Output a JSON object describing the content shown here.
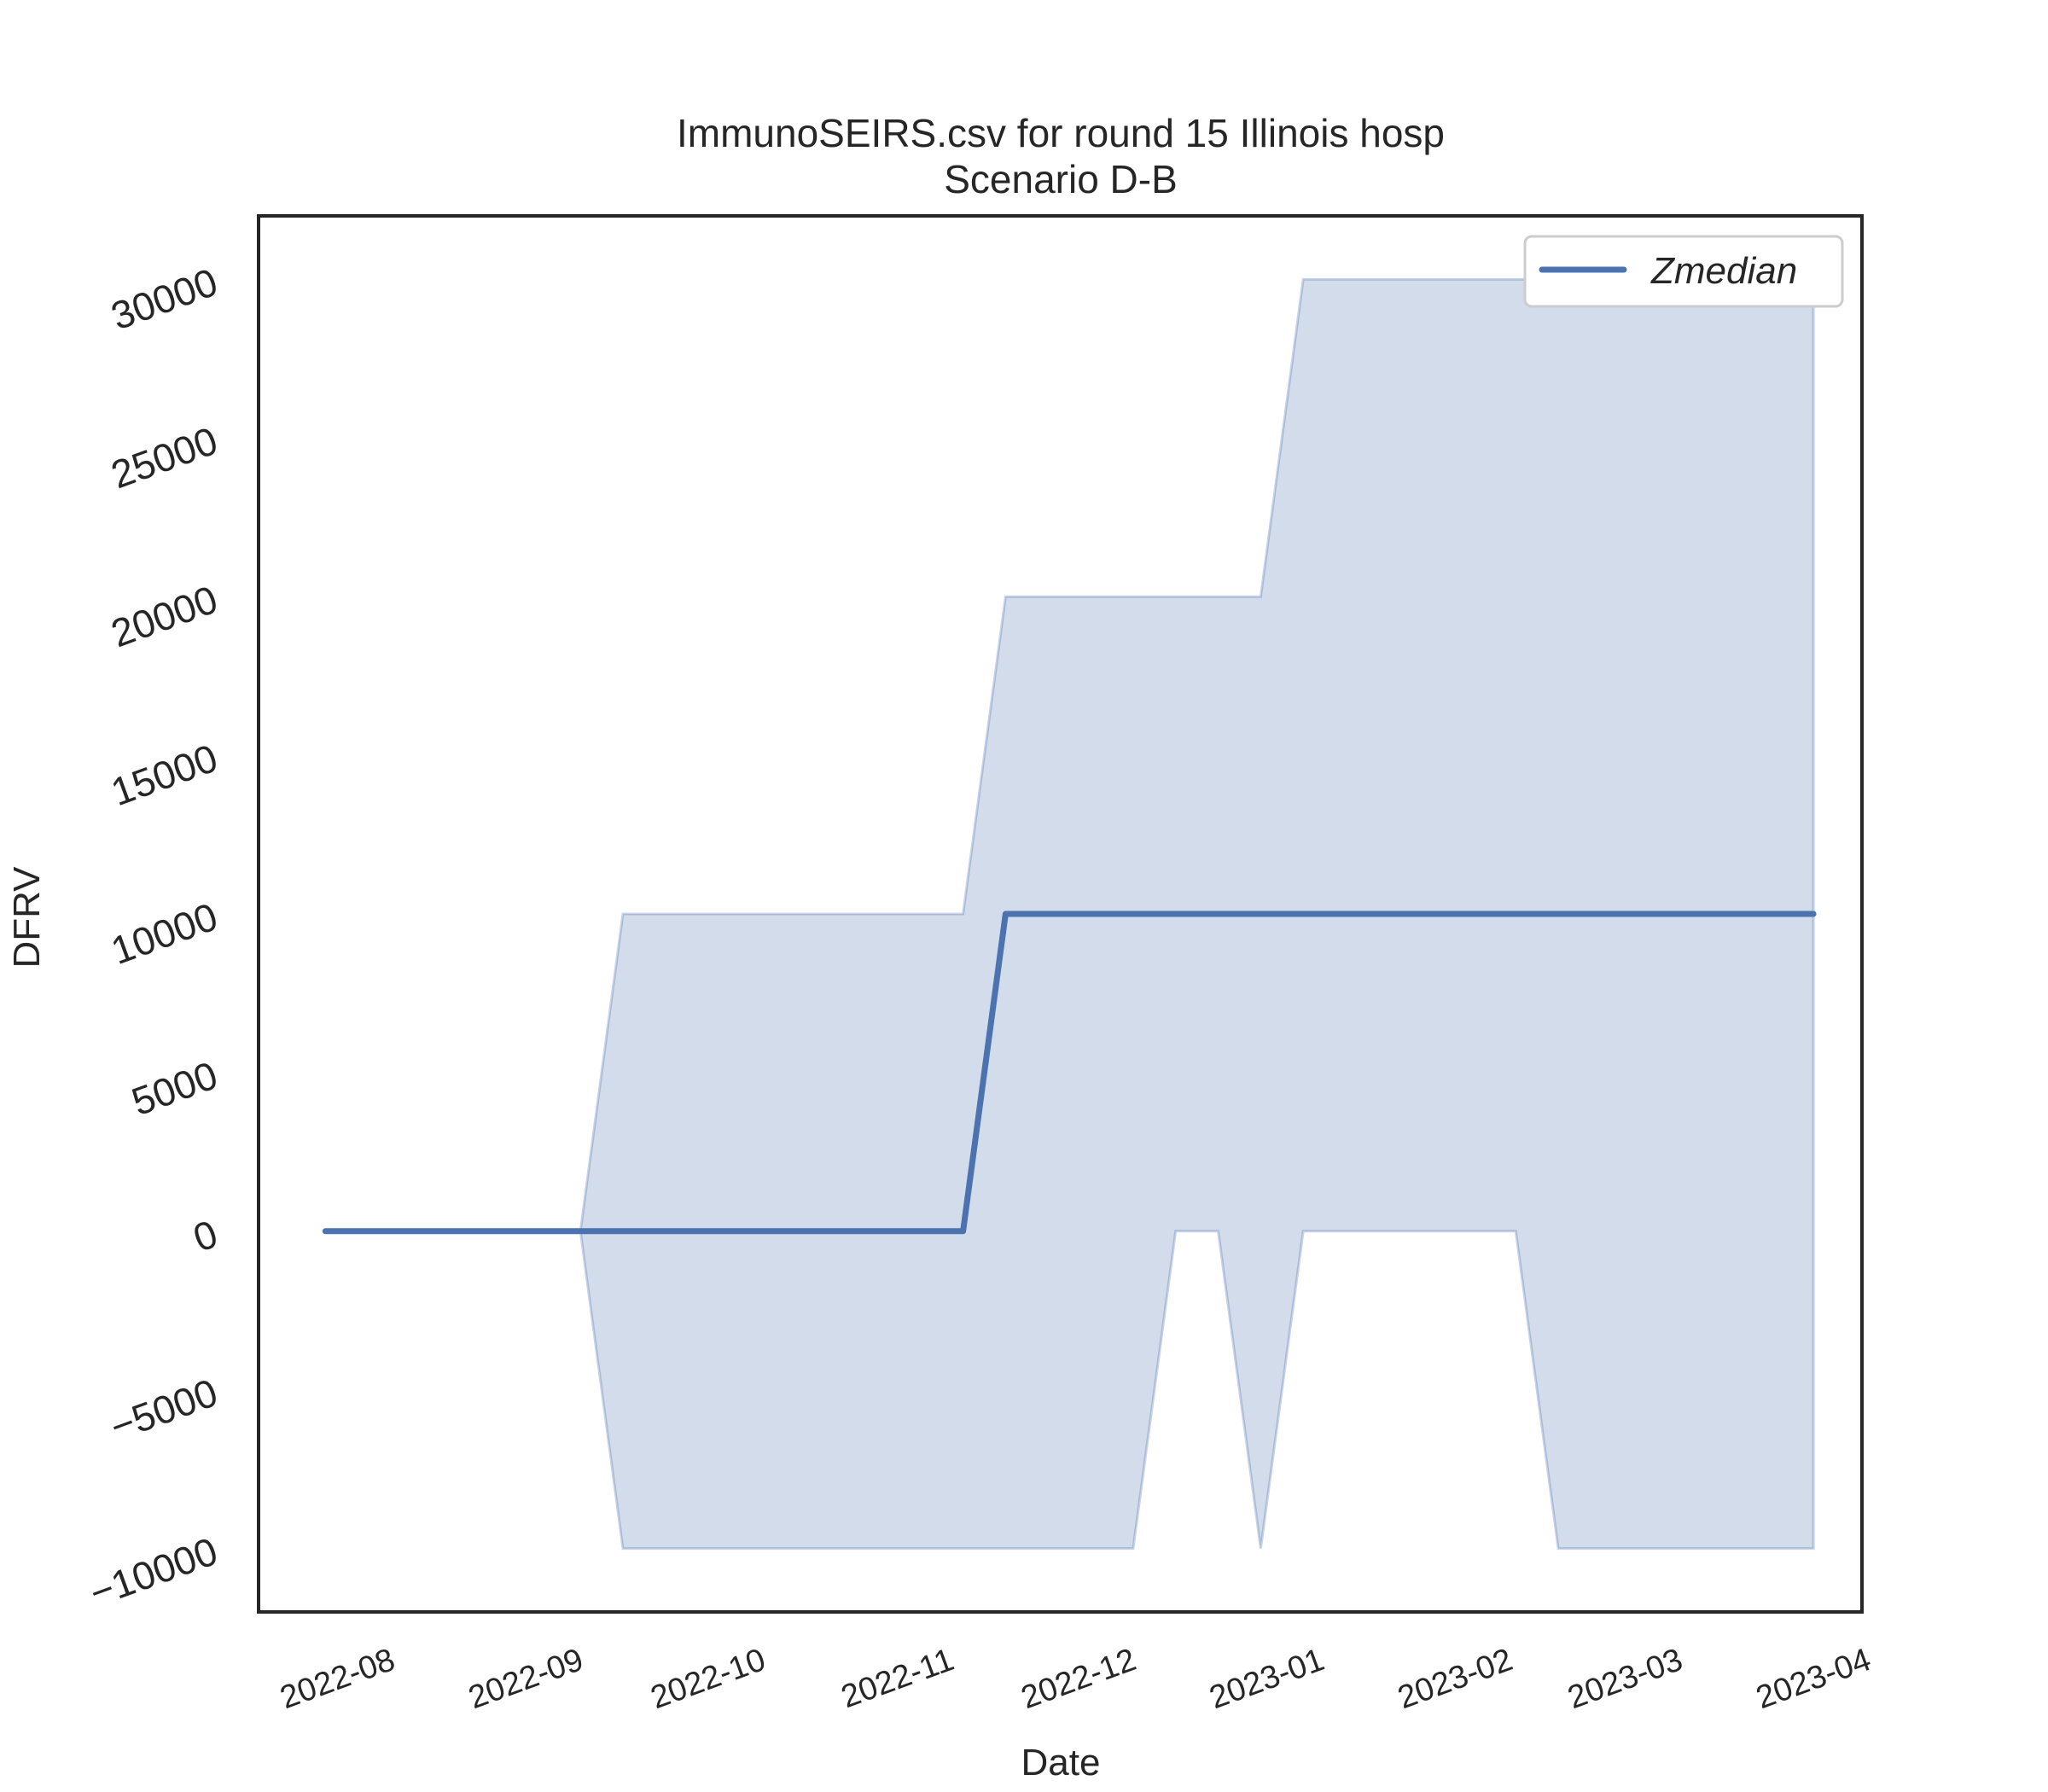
{
  "chart_data": {
    "type": "line",
    "title": "ImmunoSEIRS.csv for round 15 Illinois hosp",
    "subtitle": "Scenario D-B",
    "xlabel": "Date",
    "ylabel": "DFRV",
    "x_tick_labels": [
      "2022-08",
      "2022-09",
      "2022-10",
      "2022-11",
      "2022-12",
      "2023-01",
      "2023-02",
      "2023-03",
      "2023-04"
    ],
    "y_tick_labels": [
      "−10000",
      "−5000",
      "0",
      "5000",
      "10000",
      "15000",
      "20000",
      "25000",
      "30000"
    ],
    "y_ticks": [
      -10000,
      -5000,
      0,
      5000,
      10000,
      15000,
      20000,
      25000,
      30000
    ],
    "xlim": [
      "2022-07-12",
      "2023-04-02"
    ],
    "ylim": [
      -12000,
      32000
    ],
    "grid": false,
    "legend": {
      "position": "top-right",
      "entries": [
        "Zmedian"
      ]
    },
    "colors": {
      "line": "#4c72b0",
      "band": "#4c72b0"
    },
    "x": [
      "2022-07-23",
      "2022-08-06",
      "2022-08-20",
      "2022-09-03",
      "2022-09-10",
      "2022-09-17",
      "2022-10-01",
      "2022-10-15",
      "2022-10-29",
      "2022-11-05",
      "2022-11-12",
      "2022-11-26",
      "2022-12-03",
      "2022-12-10",
      "2022-12-17",
      "2022-12-24",
      "2022-12-31",
      "2023-01-14",
      "2023-01-28",
      "2023-02-04",
      "2023-02-11",
      "2023-02-25",
      "2023-03-11",
      "2023-03-25"
    ],
    "series": [
      {
        "name": "Zmedian",
        "values": [
          0,
          0,
          0,
          0,
          0,
          0,
          0,
          0,
          0,
          0,
          10000,
          10000,
          10000,
          10000,
          10000,
          10000,
          10000,
          10000,
          10000,
          10000,
          10000,
          10000,
          10000,
          10000
        ]
      }
    ],
    "band": {
      "lower": [
        0,
        0,
        0,
        0,
        -10000,
        -10000,
        -10000,
        -10000,
        -10000,
        -10000,
        -10000,
        -10000,
        -10000,
        0,
        0,
        -10000,
        0,
        0,
        0,
        0,
        -10000,
        -10000,
        -10000,
        -10000
      ],
      "upper": [
        0,
        0,
        0,
        0,
        10000,
        10000,
        10000,
        10000,
        10000,
        10000,
        20000,
        20000,
        20000,
        20000,
        20000,
        20000,
        30000,
        30000,
        30000,
        30000,
        30000,
        30000,
        30000,
        30000
      ]
    }
  }
}
